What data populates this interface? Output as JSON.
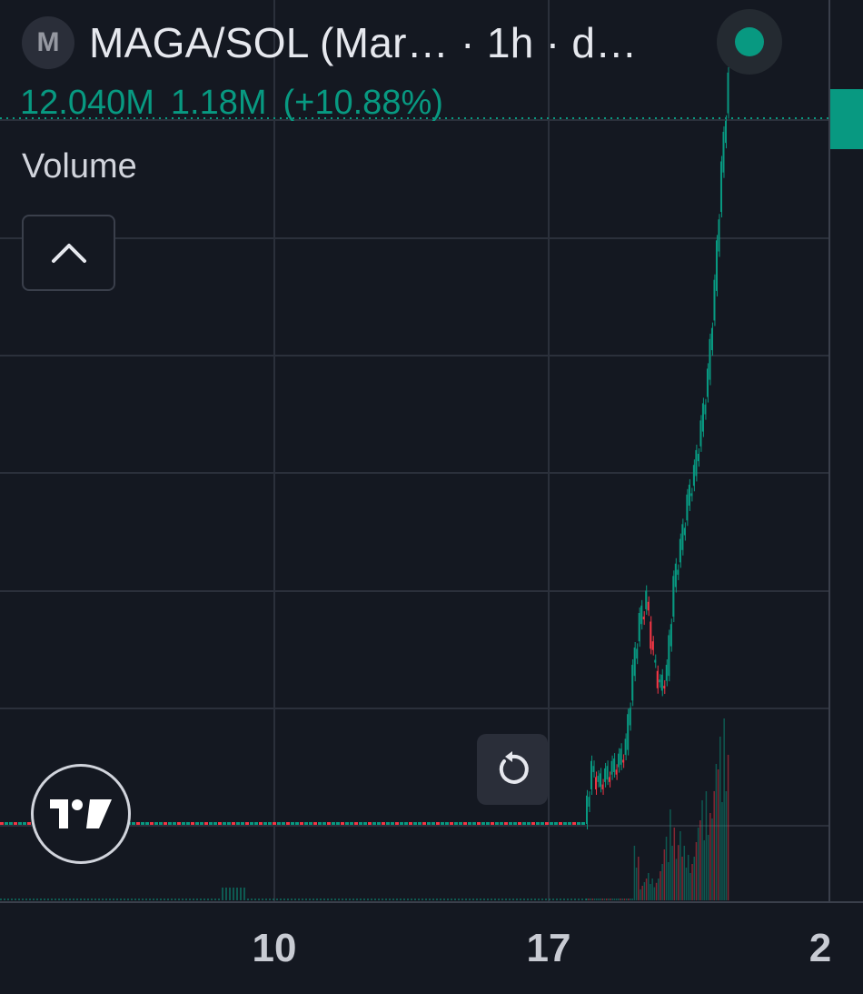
{
  "header": {
    "symbol_letter": "M",
    "title": "MAGA/SOL (Mar… · 1h · d…"
  },
  "volume_indicator": {
    "label": "Volume",
    "values": [
      "12.040M",
      "1.18M",
      "(+10.88%)"
    ]
  },
  "x_axis": {
    "ticks": [
      "10",
      "17",
      "2"
    ]
  },
  "colors": {
    "background": "#141821",
    "grid": "#2b303b",
    "up": "#089981",
    "down": "#f23645",
    "text": "#d1d4dc"
  },
  "icons": {
    "collapse": "chevron-up-icon",
    "reset": "reset-icon",
    "logo": "tradingview-logo"
  },
  "chart_data": {
    "type": "candlestick",
    "title": "MAGA/SOL",
    "interval": "1h",
    "x_ticks": [
      "10",
      "17",
      "2"
    ],
    "price_series": {
      "name": "MAGA/SOL",
      "description": "flat until shortly after 17, then a step up, sideways consolidation, and a near-vertical rally",
      "relative_close": [
        0.0,
        0.0,
        0.0,
        0.0,
        0.0,
        0.0,
        0.0,
        0.0,
        0.07,
        0.05,
        0.06,
        0.07,
        0.08,
        0.1,
        0.2,
        0.27,
        0.3,
        0.22,
        0.18,
        0.2,
        0.32,
        0.37,
        0.43,
        0.47,
        0.53,
        0.6,
        0.72,
        0.88,
        1.0
      ]
    },
    "volume_series": {
      "name": "Volume",
      "last_value": "12.040M",
      "change": "1.18M",
      "change_pct": "+10.88%",
      "relative_volume": [
        0.0,
        0.01,
        0.0,
        0.0,
        0.0,
        0.0,
        0.0,
        0.0,
        0.3,
        0.1,
        0.15,
        0.12,
        0.2,
        0.35,
        0.5,
        0.38,
        0.3,
        0.25,
        0.4,
        0.55,
        0.6,
        0.75,
        0.9,
        1.0
      ]
    }
  }
}
